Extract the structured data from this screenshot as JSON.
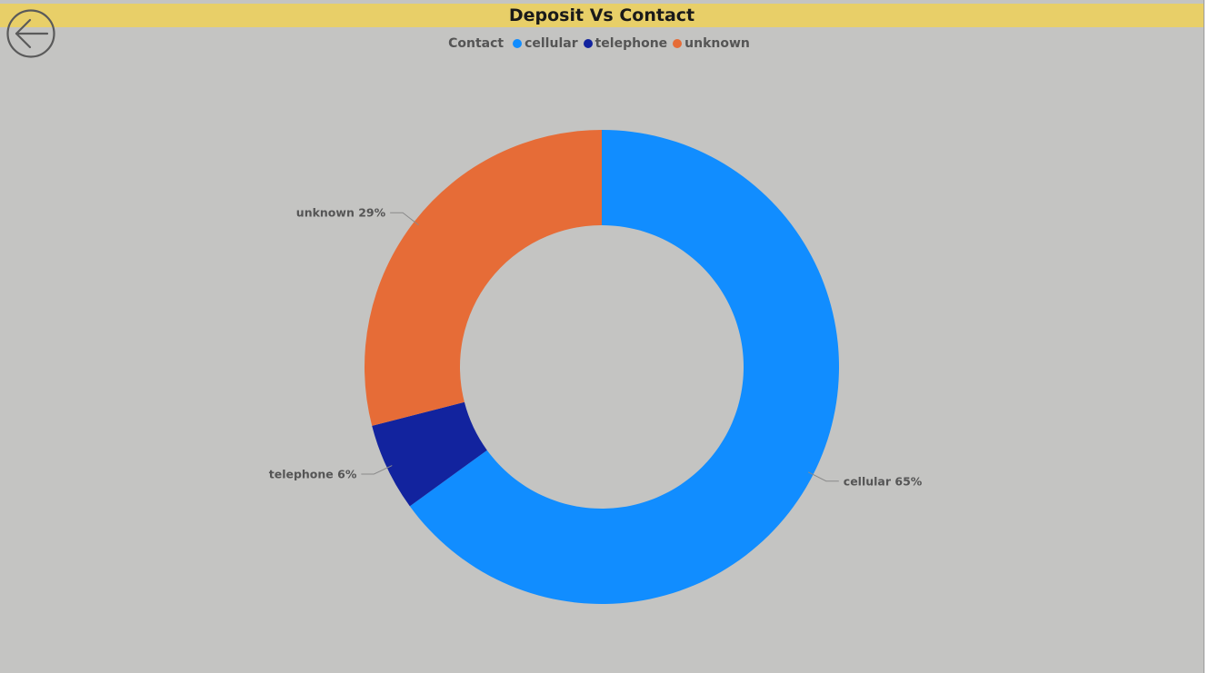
{
  "title": "Deposit Vs Contact",
  "legend": {
    "title": "Contact",
    "items": [
      {
        "label": "cellular",
        "color": "#118dff"
      },
      {
        "label": "telephone",
        "color": "#12239e"
      },
      {
        "label": "unknown",
        "color": "#e66c37"
      }
    ]
  },
  "back_button": {
    "icon": "arrow-left-icon"
  },
  "chart_data": {
    "type": "pie",
    "variant": "donut",
    "title": "Deposit Vs Contact",
    "legend_title": "Contact",
    "legend_position": "top-center",
    "slices": [
      {
        "label": "cellular",
        "value": 65,
        "display": "cellular 65%",
        "color": "#118dff"
      },
      {
        "label": "telephone",
        "value": 6,
        "display": "telephone 6%",
        "color": "#12239e"
      },
      {
        "label": "unknown",
        "value": 29,
        "display": "unknown 29%",
        "color": "#e66c37"
      }
    ]
  }
}
